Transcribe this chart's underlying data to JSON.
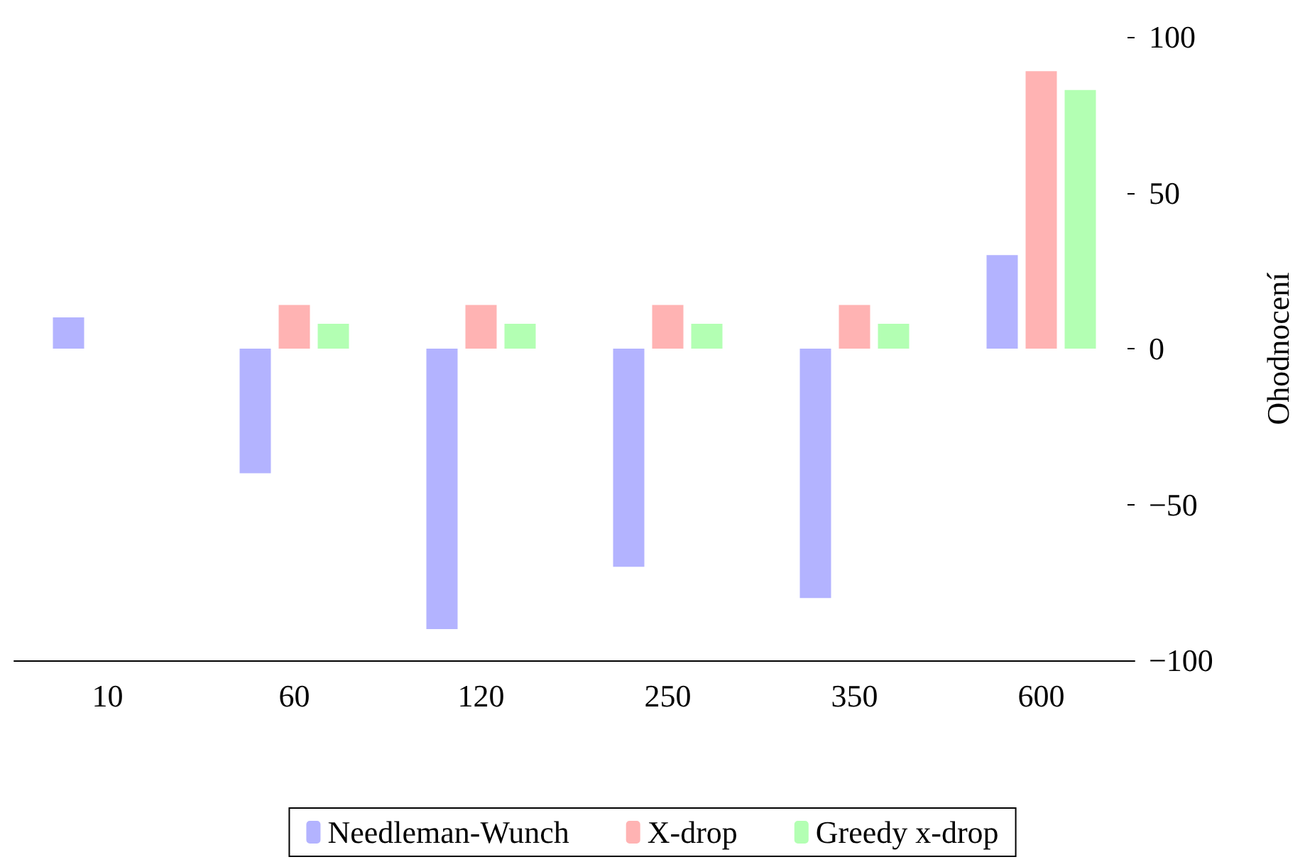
{
  "chart_data": {
    "type": "bar",
    "ylabel": "Ohodnocení",
    "categories": [
      "10",
      "60",
      "120",
      "250",
      "350",
      "600"
    ],
    "series": [
      {
        "name": "Needleman-Wunch",
        "color": "#b3b3ff",
        "values": [
          10,
          -40,
          -90,
          -70,
          -80,
          30
        ]
      },
      {
        "name": "X-drop",
        "color": "#ffb3b3",
        "values": [
          null,
          14,
          14,
          14,
          14,
          89
        ]
      },
      {
        "name": "Greedy x-drop",
        "color": "#b3ffb3",
        "values": [
          null,
          8,
          8,
          8,
          8,
          83
        ]
      }
    ],
    "ylim": [
      -100,
      100
    ],
    "yticks": [
      -100,
      -50,
      0,
      50,
      100
    ],
    "grid": false,
    "legend": "bottom"
  }
}
